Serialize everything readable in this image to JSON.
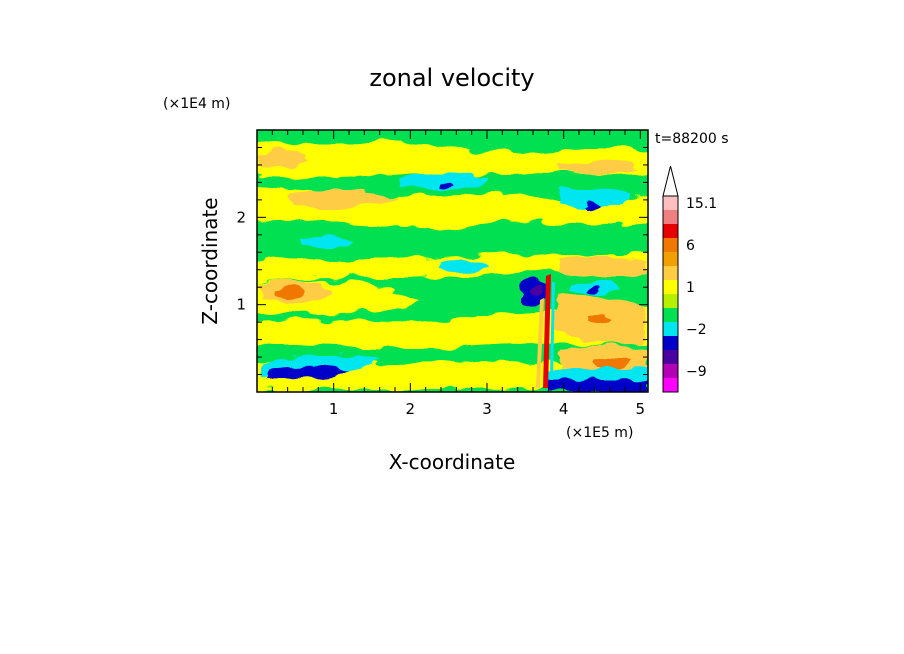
{
  "chart_data": {
    "type": "heatmap",
    "title": "zonal velocity",
    "xlabel": "X-coordinate",
    "ylabel": "Z-coordinate",
    "x_unit": "(×1E5 m)",
    "y_unit": "(×1E4 m)",
    "time_label": "t=88200 s",
    "xlim": [
      0,
      5.1
    ],
    "ylim": [
      0,
      3.0
    ],
    "x_ticks": [
      1,
      2,
      3,
      4,
      5
    ],
    "y_ticks": [
      1,
      2
    ],
    "colorbar": {
      "tick_labels": [
        "15.1",
        "6",
        "1",
        "−2",
        "−9"
      ],
      "levels": [
        {
          "value": 15.1,
          "color": "#ffbfbf"
        },
        {
          "value": 12,
          "color": "#f08080"
        },
        {
          "value": 9,
          "color": "#e60000"
        },
        {
          "value": 6,
          "color": "#f07800"
        },
        {
          "value": 4,
          "color": "#f0a000"
        },
        {
          "value": 2,
          "color": "#ffcc44"
        },
        {
          "value": 1,
          "color": "#ffff00"
        },
        {
          "value": 0,
          "color": "#b4f000"
        },
        {
          "value": -1,
          "color": "#00e050"
        },
        {
          "value": -2,
          "color": "#00e6f0"
        },
        {
          "value": -4,
          "color": "#0000c8"
        },
        {
          "value": -6,
          "color": "#4b00a0"
        },
        {
          "value": -9,
          "color": "#b400b4"
        },
        {
          "value": -12,
          "color": "#ff00ff"
        }
      ]
    }
  }
}
